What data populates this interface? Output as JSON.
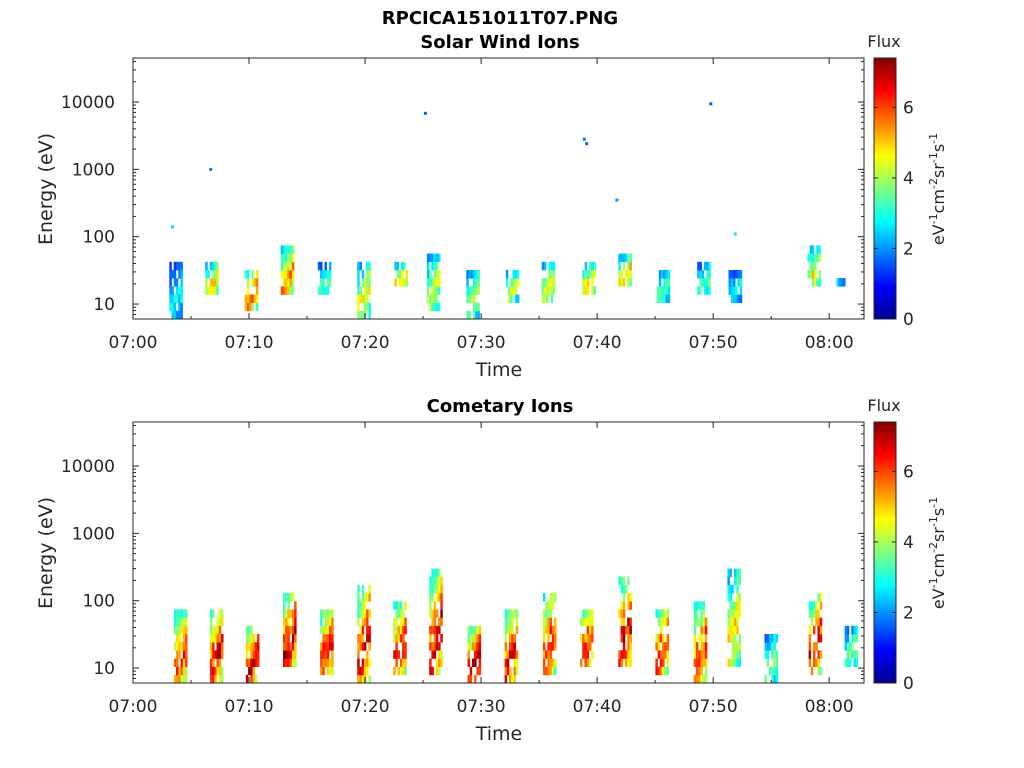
{
  "figure_title": "RPCICA151011T07.PNG",
  "chart_data": [
    {
      "type": "heatmap",
      "title": "Solar Wind Ions",
      "xlabel": "Time",
      "ylabel": "Energy (eV)",
      "x_ticks": [
        "07:00",
        "07:10",
        "07:20",
        "07:30",
        "07:40",
        "07:50",
        "08:00"
      ],
      "y_ticks": [
        10,
        100,
        1000,
        10000
      ],
      "y_scale": "log",
      "xlim_minutes": [
        0,
        63
      ],
      "ylim": [
        6,
        45000
      ],
      "colorbar": {
        "title": "Flux",
        "label": "eV-1cm-2sr-1s-1",
        "ticks": [
          0,
          2,
          4,
          6
        ],
        "range": [
          0,
          7.4
        ],
        "colormap": "jet"
      },
      "columns": [
        {
          "t": 3.7,
          "e_min": 6,
          "e_max": 40,
          "peak": 2.8
        },
        {
          "t": 6.8,
          "e_min": 13,
          "e_max": 42,
          "peak": 4.8
        },
        {
          "t": 10.2,
          "e_min": 8,
          "e_max": 36,
          "peak": 5.8
        },
        {
          "t": 13.3,
          "e_min": 13,
          "e_max": 70,
          "peak": 5.5
        },
        {
          "t": 16.5,
          "e_min": 13,
          "e_max": 42,
          "peak": 3.4
        },
        {
          "t": 19.9,
          "e_min": 6,
          "e_max": 42,
          "peak": 4.6
        },
        {
          "t": 23.1,
          "e_min": 17,
          "e_max": 42,
          "peak": 5.0
        },
        {
          "t": 25.9,
          "e_min": 8,
          "e_max": 58,
          "peak": 4.3
        },
        {
          "t": 29.3,
          "e_min": 6,
          "e_max": 36,
          "peak": 4.0
        },
        {
          "t": 32.7,
          "e_min": 11,
          "e_max": 32,
          "peak": 4.2
        },
        {
          "t": 35.8,
          "e_min": 11,
          "e_max": 42,
          "peak": 4.6
        },
        {
          "t": 39.3,
          "e_min": 13,
          "e_max": 42,
          "peak": 5.0
        },
        {
          "t": 42.4,
          "e_min": 17,
          "e_max": 52,
          "peak": 5.3
        },
        {
          "t": 45.7,
          "e_min": 11,
          "e_max": 36,
          "peak": 3.5
        },
        {
          "t": 49.2,
          "e_min": 13,
          "e_max": 40,
          "peak": 3.6
        },
        {
          "t": 51.9,
          "e_min": 11,
          "e_max": 32,
          "peak": 3.0
        },
        {
          "t": 58.7,
          "e_min": 17,
          "e_max": 72,
          "peak": 4.8
        },
        {
          "t": 61.2,
          "e_min": 21,
          "e_max": 26,
          "peak": 2.8
        }
      ],
      "points": [
        {
          "t": 3.4,
          "e": 140,
          "flux": 2.5
        },
        {
          "t": 6.7,
          "e": 1000,
          "flux": 1.8
        },
        {
          "t": 25.2,
          "e": 6800,
          "flux": 1.6
        },
        {
          "t": 38.9,
          "e": 2800,
          "flux": 1.8
        },
        {
          "t": 39.1,
          "e": 2400,
          "flux": 1.6
        },
        {
          "t": 41.7,
          "e": 350,
          "flux": 2.0
        },
        {
          "t": 49.8,
          "e": 9400,
          "flux": 1.6
        },
        {
          "t": 51.9,
          "e": 110,
          "flux": 2.6
        }
      ]
    },
    {
      "type": "heatmap",
      "title": "Cometary Ions",
      "xlabel": "Time",
      "ylabel": "Energy (eV)",
      "x_ticks": [
        "07:00",
        "07:10",
        "07:20",
        "07:30",
        "07:40",
        "07:50",
        "08:00"
      ],
      "y_ticks": [
        10,
        100,
        1000,
        10000
      ],
      "y_scale": "log",
      "xlim_minutes": [
        0,
        63
      ],
      "ylim": [
        6,
        45000
      ],
      "colorbar": {
        "title": "Flux",
        "label": "eV-1cm-2sr-1s-1",
        "ticks": [
          0,
          2,
          4,
          6
        ],
        "range": [
          0,
          7.4
        ],
        "colormap": "jet"
      },
      "columns": [
        {
          "t": 4.1,
          "e_min": 6,
          "e_max": 65,
          "peak": 6.3
        },
        {
          "t": 7.2,
          "e_min": 6,
          "e_max": 85,
          "peak": 6.6
        },
        {
          "t": 10.3,
          "e_min": 6,
          "e_max": 45,
          "peak": 6.9
        },
        {
          "t": 13.5,
          "e_min": 10,
          "e_max": 140,
          "peak": 6.8
        },
        {
          "t": 16.7,
          "e_min": 8,
          "e_max": 85,
          "peak": 6.6
        },
        {
          "t": 19.9,
          "e_min": 6,
          "e_max": 180,
          "peak": 6.5
        },
        {
          "t": 23.0,
          "e_min": 8,
          "e_max": 95,
          "peak": 6.6
        },
        {
          "t": 26.1,
          "e_min": 8,
          "e_max": 270,
          "peak": 6.7
        },
        {
          "t": 29.4,
          "e_min": 6,
          "e_max": 45,
          "peak": 7.0
        },
        {
          "t": 32.6,
          "e_min": 6,
          "e_max": 80,
          "peak": 6.5
        },
        {
          "t": 35.9,
          "e_min": 8,
          "e_max": 140,
          "peak": 6.4
        },
        {
          "t": 39.1,
          "e_min": 10,
          "e_max": 85,
          "peak": 6.4
        },
        {
          "t": 42.4,
          "e_min": 10,
          "e_max": 200,
          "peak": 6.9
        },
        {
          "t": 45.6,
          "e_min": 8,
          "e_max": 85,
          "peak": 6.3
        },
        {
          "t": 48.9,
          "e_min": 6,
          "e_max": 95,
          "peak": 6.2
        },
        {
          "t": 51.8,
          "e_min": 10,
          "e_max": 290,
          "peak": 5.0
        },
        {
          "t": 55.0,
          "e_min": 6,
          "e_max": 36,
          "peak": 3.8
        },
        {
          "t": 58.8,
          "e_min": 8,
          "e_max": 120,
          "peak": 6.6
        },
        {
          "t": 61.9,
          "e_min": 10,
          "e_max": 42,
          "peak": 3.8
        }
      ],
      "points": []
    }
  ]
}
